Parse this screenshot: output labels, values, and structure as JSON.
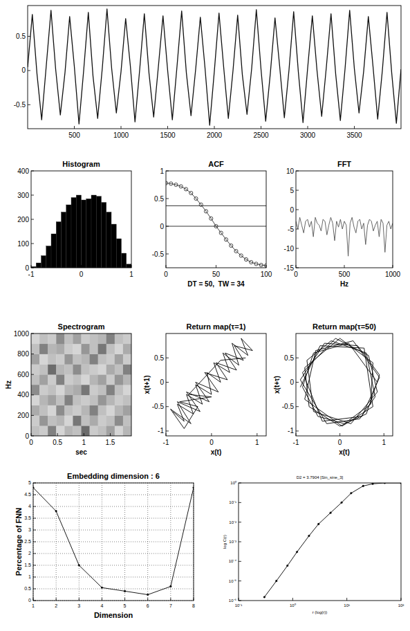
{
  "chart_data": [
    {
      "type": "line",
      "color": "#111111",
      "x": [
        0,
        50,
        100,
        150,
        200,
        250,
        300,
        350,
        400,
        450,
        500,
        550,
        600,
        650,
        700,
        750,
        800,
        850,
        900,
        950,
        1000,
        1050,
        1100,
        1150,
        1200,
        1250,
        1300,
        1350,
        1400,
        1450,
        1500,
        1550,
        1600,
        1650,
        1700,
        1750,
        1800,
        1850,
        1900,
        1950,
        2000,
        2050,
        2100,
        2150,
        2200,
        2250,
        2300,
        2350,
        2400,
        2450,
        2500,
        2550,
        2600,
        2650,
        2700,
        2750,
        2800,
        2850,
        2900,
        2950,
        3000,
        3050,
        3100,
        3150,
        3200,
        3250,
        3300,
        3350,
        3400,
        3450,
        3500,
        3550,
        3600,
        3650,
        3700,
        3750,
        3800,
        3850,
        3900,
        3950,
        4000
      ],
      "values": [
        0.05,
        0.82,
        -0.05,
        -0.72,
        0.08,
        0.88,
        0.02,
        -0.65,
        -0.03,
        0.79,
        0.06,
        -0.78,
        0.0,
        0.85,
        -0.08,
        -0.7,
        0.04,
        0.9,
        0.03,
        -0.62,
        -0.02,
        0.76,
        0.07,
        -0.75,
        0.01,
        0.83,
        -0.04,
        -0.68,
        0.05,
        0.8,
        0.0,
        -0.72,
        0.06,
        0.87,
        -0.03,
        -0.66,
        0.02,
        0.78,
        0.04,
        -0.8,
        -0.01,
        0.84,
        0.05,
        -0.7,
        0.0,
        0.81,
        -0.06,
        -0.64,
        0.03,
        0.89,
        0.02,
        -0.74,
        -0.04,
        0.77,
        0.06,
        -0.69,
        0.01,
        0.86,
        -0.02,
        -0.76,
        0.04,
        0.8,
        0.0,
        -0.67,
        0.05,
        0.83,
        -0.05,
        -0.73,
        0.02,
        0.88,
        0.03,
        -0.62,
        -0.01,
        0.79,
        0.06,
        -0.71,
        0.0,
        0.85,
        -0.03,
        -0.77,
        0.02
      ],
      "xlim": [
        0,
        4000
      ],
      "ylim": [
        -0.85,
        0.95
      ],
      "xticks": [
        500,
        1000,
        1500,
        2000,
        2500,
        3000,
        3500
      ],
      "yticks": [
        -0.5,
        0,
        0.5
      ]
    },
    {
      "type": "histogram",
      "title": "Histogram",
      "color": "#000000",
      "bins": [
        -1,
        -0.9,
        -0.8,
        -0.7,
        -0.6,
        -0.5,
        -0.4,
        -0.3,
        -0.2,
        -0.1,
        0,
        0.1,
        0.2,
        0.3,
        0.4,
        0.5,
        0.6,
        0.7,
        0.8,
        0.9,
        1
      ],
      "values": [
        5,
        20,
        50,
        90,
        140,
        190,
        230,
        260,
        290,
        300,
        280,
        285,
        300,
        295,
        270,
        230,
        180,
        120,
        60,
        15
      ],
      "xlim": [
        -1,
        1
      ],
      "ylim": [
        0,
        400
      ],
      "xticks": [
        -1,
        0,
        1
      ],
      "yticks": [
        0,
        100,
        200,
        300,
        400
      ]
    },
    {
      "type": "line",
      "title": "ACF",
      "x_label": "DT = 50,  TW = 34",
      "color": "#333333",
      "marker": "circle",
      "x": [
        0,
        5,
        10,
        15,
        20,
        25,
        30,
        35,
        40,
        45,
        50,
        55,
        60,
        65,
        70,
        75,
        80,
        85,
        90,
        95,
        100
      ],
      "values": [
        0.78,
        0.77,
        0.75,
        0.72,
        0.67,
        0.6,
        0.5,
        0.39,
        0.27,
        0.14,
        0.0,
        -0.12,
        -0.24,
        -0.35,
        -0.45,
        -0.53,
        -0.6,
        -0.65,
        -0.68,
        -0.7,
        -0.71
      ],
      "hlines": [
        0.37,
        0
      ],
      "xlim": [
        0,
        100
      ],
      "ylim": [
        -0.75,
        1
      ],
      "xticks": [
        0,
        50,
        100
      ],
      "yticks": [
        -0.5,
        0,
        0.5,
        1
      ]
    },
    {
      "type": "line",
      "title": "FFT",
      "x_label": "Hz",
      "color": "#555555",
      "x": [
        0,
        20,
        40,
        60,
        80,
        100,
        120,
        140,
        160,
        180,
        200,
        220,
        240,
        260,
        280,
        300,
        320,
        340,
        360,
        380,
        400,
        420,
        440,
        460,
        480,
        500,
        520,
        540,
        560,
        580,
        600,
        620,
        640,
        660,
        680,
        700,
        720,
        740,
        760,
        780,
        800,
        820,
        840,
        860,
        880,
        900,
        920,
        940,
        960,
        980,
        1000
      ],
      "values": [
        -3,
        -5,
        -2,
        -4,
        -6,
        -3,
        -2.5,
        -4.5,
        -3,
        -7,
        -2,
        -3.5,
        -4,
        -5.5,
        -2.5,
        -3,
        -6.5,
        -4,
        -2,
        -3.5,
        -8,
        -3,
        -4.5,
        -2.5,
        -5,
        -3,
        -4,
        -12,
        -3.5,
        -2,
        -4.5,
        -6,
        -3,
        -2.5,
        -5,
        -3.5,
        -9,
        -4,
        -2.5,
        -3,
        -5.5,
        -4,
        -3,
        -7,
        -2.5,
        -3.5,
        -11,
        -4,
        -3,
        -5,
        -3.5
      ],
      "xlim": [
        0,
        1000
      ],
      "ylim": [
        -15,
        10
      ],
      "xticks": [
        0,
        500,
        1000
      ],
      "yticks": [
        -15,
        -10,
        -5,
        0,
        5,
        10
      ]
    },
    {
      "type": "heatmap",
      "title": "Spectrogram",
      "x_label": "sec",
      "y_label": "Hz",
      "cells": [
        [
          0.3,
          0.25,
          0.6,
          0.2,
          0.35,
          0.3,
          0.7,
          0.25,
          0.3,
          0.45,
          0.2,
          0.35
        ],
        [
          0.25,
          0.5,
          0.3,
          0.35,
          0.2,
          0.65,
          0.3,
          0.4,
          0.25,
          0.3,
          0.55,
          0.3
        ],
        [
          0.4,
          0.3,
          0.2,
          0.55,
          0.3,
          0.25,
          0.35,
          0.6,
          0.3,
          0.2,
          0.35,
          0.45
        ],
        [
          0.2,
          0.35,
          0.45,
          0.3,
          0.6,
          0.3,
          0.25,
          0.3,
          0.5,
          0.35,
          0.25,
          0.3
        ],
        [
          0.55,
          0.25,
          0.3,
          0.2,
          0.35,
          0.4,
          0.65,
          0.25,
          0.3,
          0.6,
          0.3,
          0.2
        ],
        [
          0.3,
          0.45,
          0.25,
          0.6,
          0.25,
          0.3,
          0.2,
          0.35,
          0.45,
          0.25,
          0.5,
          0.35
        ],
        [
          0.25,
          0.3,
          0.7,
          0.35,
          0.3,
          0.55,
          0.3,
          0.25,
          0.2,
          0.4,
          0.3,
          0.6
        ],
        [
          0.45,
          0.2,
          0.3,
          0.25,
          0.5,
          0.3,
          0.35,
          0.6,
          0.3,
          0.25,
          0.45,
          0.25
        ],
        [
          0.3,
          0.6,
          0.35,
          0.4,
          0.25,
          0.2,
          0.5,
          0.3,
          0.65,
          0.3,
          0.2,
          0.4
        ],
        [
          0.2,
          0.3,
          0.25,
          0.55,
          0.3,
          0.45,
          0.25,
          0.3,
          0.35,
          0.6,
          0.3,
          0.25
        ]
      ],
      "zlim": [
        0,
        1
      ],
      "xlim": [
        0,
        1.9
      ],
      "ylim": [
        0,
        1000
      ],
      "xticks": [
        0,
        0.5,
        1,
        1.5
      ],
      "yticks": [
        0,
        200,
        400,
        600,
        800,
        1000
      ]
    },
    {
      "type": "scatter",
      "title": "Return map(τ=1)",
      "x_label": "x(t)",
      "y_label": "x(t+1)",
      "color": "#000000",
      "line_style": "solid",
      "x": [
        -0.85,
        -0.6,
        -0.75,
        -0.4,
        -0.55,
        -0.2,
        -0.35,
        0.0,
        -0.1,
        0.2,
        0.05,
        0.4,
        0.25,
        0.6,
        0.45,
        0.8,
        0.65,
        0.9,
        0.5,
        0.7,
        0.3,
        0.55,
        0.1,
        0.35,
        -0.15,
        0.15,
        -0.35,
        -0.05,
        -0.55,
        -0.25,
        -0.75,
        -0.45,
        -0.9,
        -0.6,
        -0.3,
        -0.7,
        0.0,
        -0.5,
        0.2,
        0.75
      ],
      "values": [
        -0.6,
        -0.8,
        -0.45,
        -0.65,
        -0.25,
        -0.45,
        -0.05,
        -0.25,
        0.2,
        0.0,
        0.4,
        0.2,
        0.6,
        0.35,
        0.8,
        0.55,
        0.9,
        0.65,
        0.75,
        0.45,
        0.6,
        0.25,
        0.4,
        0.05,
        0.2,
        -0.2,
        0.0,
        -0.4,
        -0.2,
        -0.6,
        -0.4,
        -0.85,
        -0.55,
        -0.95,
        -0.5,
        -0.4,
        -0.3,
        -0.25,
        0.45,
        0.5
      ],
      "xlim": [
        -1,
        1.2
      ],
      "ylim": [
        -1.1,
        1
      ],
      "xticks": [
        -1,
        0,
        1
      ],
      "yticks": [
        -1,
        -0.5,
        0,
        0.5
      ]
    },
    {
      "type": "scatter",
      "title": "Return map(τ=50)",
      "x_label": "x(t)",
      "y_label": "x(t+τ)",
      "color": "#000000",
      "line_style": "solid",
      "x": [
        0.85,
        0.2,
        -0.6,
        -0.85,
        -0.5,
        0.1,
        0.7,
        0.75,
        0,
        -0.8,
        -0.7,
        0,
        0.6,
        0.9,
        0.4,
        -0.35,
        -0.9,
        -0.3,
        0.45,
        0.8,
        0.6,
        -0.2,
        -0.75,
        -0.6,
        0.25,
        0.85,
        0.65,
        -0.1,
        -0.85,
        -0.4,
        0.5,
        0.9,
        0.3,
        -0.55,
        -0.8,
        0.05,
        0.75,
        0.55,
        -0.45,
        -0.9
      ],
      "values": [
        0,
        0.8,
        0.6,
        -0.1,
        -0.7,
        -0.85,
        -0.45,
        0.4,
        0.9,
        0.3,
        -0.5,
        -0.9,
        -0.65,
        0.15,
        0.75,
        0.8,
        0.05,
        -0.85,
        -0.75,
        -0.3,
        0.6,
        0.85,
        0.45,
        -0.6,
        -0.85,
        -0.2,
        0.55,
        0.9,
        0.2,
        -0.8,
        -0.7,
        0.1,
        0.85,
        0.65,
        -0.35,
        -0.9,
        -0.5,
        0.7,
        0.75,
        -0.1
      ],
      "xlim": [
        -1,
        1.2
      ],
      "ylim": [
        -1.1,
        1
      ],
      "xticks": [
        -1,
        0,
        1
      ],
      "yticks": [
        -1,
        -0.5,
        0,
        0.5
      ]
    },
    {
      "type": "line",
      "title": "Embedding dimension : 6",
      "x_label": "Dimension",
      "y_label": "Percentage of FNN",
      "color": "#000000",
      "marker": "dot",
      "grid": true,
      "x": [
        1,
        2,
        3,
        4,
        5,
        6,
        7,
        8
      ],
      "values": [
        4.8,
        3.8,
        1.5,
        0.55,
        0.4,
        0.25,
        0.6,
        4.8
      ],
      "xlim": [
        1,
        8
      ],
      "ylim": [
        0,
        5
      ],
      "xticks": [
        1,
        2,
        3,
        4,
        5,
        6,
        7,
        8
      ],
      "yticks": [
        0,
        0.5,
        1,
        1.5,
        2,
        2.5,
        3,
        3.5,
        4,
        4.5,
        5
      ]
    },
    {
      "type": "line",
      "title": "D2 = 3.7904 [Sin_sine_3]",
      "x_label": "r (log(r))",
      "y_label": "log C(r)",
      "color": "#000000",
      "marker": "dot",
      "log": true,
      "x": [
        0.3,
        0.5,
        0.8,
        1.2,
        2,
        3,
        5,
        8,
        12,
        20,
        30,
        50,
        100
      ],
      "values": [
        1.5e-06,
        1e-05,
        6e-05,
        0.0003,
        0.002,
        0.008,
        0.03,
        0.1,
        0.3,
        0.7,
        0.9,
        1,
        1
      ],
      "xlim": [
        0.1,
        100
      ],
      "ylim": [
        1e-06,
        1
      ],
      "xticks": [
        {
          "value": 0.1,
          "label": "10⁻¹"
        },
        {
          "value": 1,
          "label": "10⁰"
        },
        {
          "value": 10,
          "label": "10¹"
        },
        {
          "value": 100,
          "label": "10²"
        }
      ],
      "yticks": [
        {
          "value": 1e-06,
          "label": "10⁻⁶"
        },
        {
          "value": 1e-05,
          "label": "10⁻⁵"
        },
        {
          "value": 0.0001,
          "label": "10⁻⁴"
        },
        {
          "value": 0.001,
          "label": "10⁻³"
        },
        {
          "value": 0.01,
          "label": "10⁻²"
        },
        {
          "value": 0.1,
          "label": "10⁻¹"
        },
        {
          "value": 1,
          "label": "10⁰"
        }
      ]
    }
  ]
}
